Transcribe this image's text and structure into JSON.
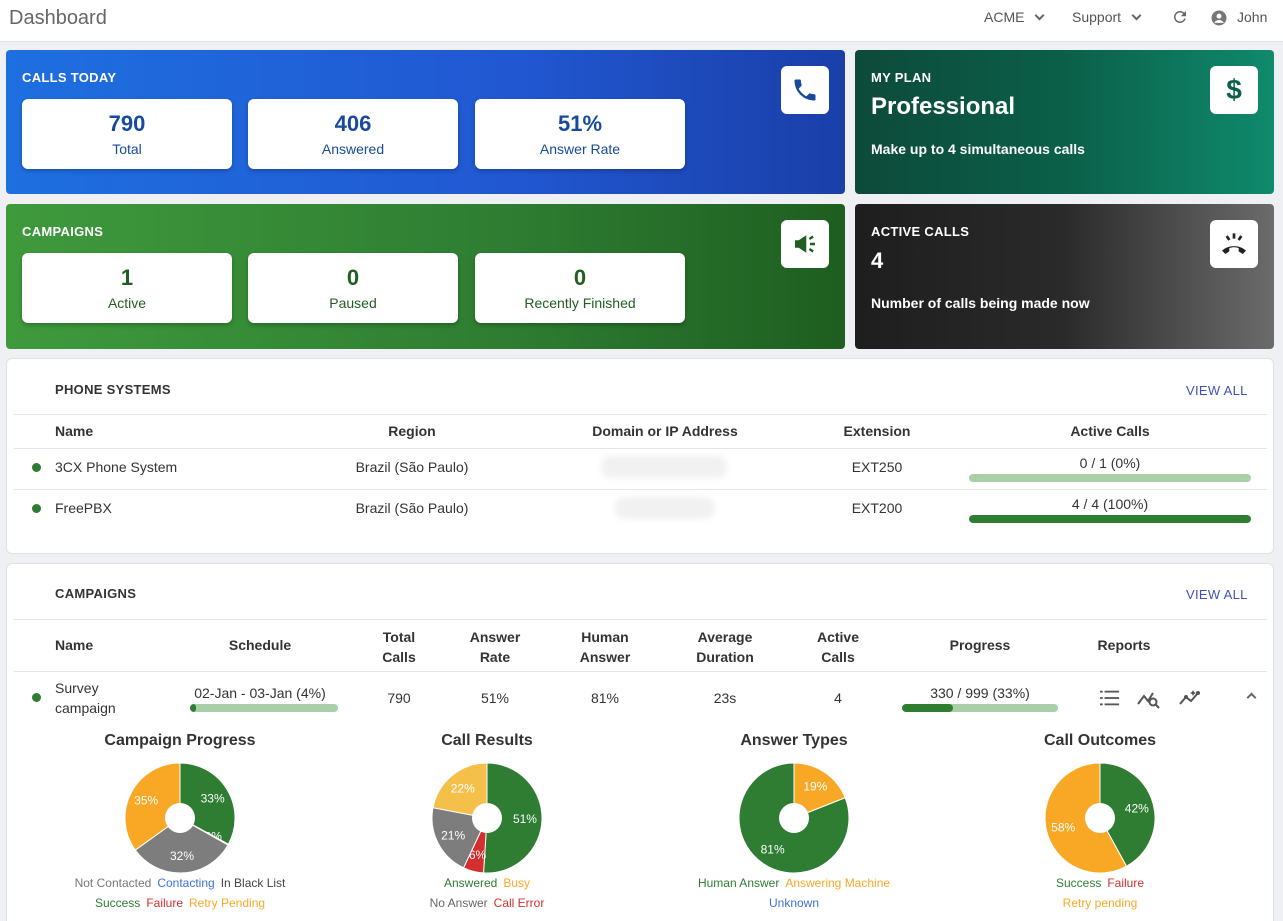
{
  "header": {
    "title": "Dashboard",
    "org": "ACME",
    "support": "Support",
    "user": "John"
  },
  "calls_today": {
    "title": "CALLS TODAY",
    "stats": [
      {
        "value": "790",
        "label": "Total"
      },
      {
        "value": "406",
        "label": "Answered"
      },
      {
        "value": "51%",
        "label": "Answer Rate"
      }
    ]
  },
  "my_plan": {
    "title": "MY PLAN",
    "plan": "Professional",
    "desc": "Make up to 4 simultaneous calls"
  },
  "campaigns_card": {
    "title": "CAMPAIGNS",
    "stats": [
      {
        "value": "1",
        "label": "Active"
      },
      {
        "value": "0",
        "label": "Paused"
      },
      {
        "value": "0",
        "label": "Recently Finished"
      }
    ]
  },
  "active_calls": {
    "title": "ACTIVE CALLS",
    "count": "4",
    "desc": "Number of calls being made now"
  },
  "phone_systems": {
    "title": "PHONE SYSTEMS",
    "view_all": "VIEW ALL",
    "columns": [
      "Name",
      "Region",
      "Domain or IP Address",
      "Extension",
      "Active Calls"
    ],
    "rows": [
      {
        "name": "3CX Phone System",
        "region": "Brazil (São Paulo)",
        "extension": "EXT250",
        "active": "0 / 1 (0%)",
        "progress": 0
      },
      {
        "name": "FreePBX",
        "region": "Brazil (São Paulo)",
        "extension": "EXT200",
        "active": "4 / 4 (100%)",
        "progress": 1
      }
    ]
  },
  "campaigns": {
    "title": "CAMPAIGNS",
    "view_all": "VIEW ALL",
    "columns": {
      "name": "Name",
      "schedule": "Schedule",
      "total1": "Total",
      "total2": "Calls",
      "rate1": "Answer",
      "rate2": "Rate",
      "human1": "Human",
      "human2": "Answer",
      "avg1": "Average",
      "avg2": "Duration",
      "active1": "Active",
      "active2": "Calls",
      "progress": "Progress",
      "reports": "Reports"
    },
    "row": {
      "name1": "Survey",
      "name2": "campaign",
      "schedule": "02-Jan - 03-Jan (4%)",
      "schedule_progress": 0.04,
      "total": "790",
      "rate": "51%",
      "human": "81%",
      "avg": "23s",
      "active": "4",
      "progress": "330 / 999 (33%)",
      "progress_value": 0.33
    }
  },
  "colors": {
    "green": "#2e7d32",
    "orange": "#f9a825",
    "red": "#d32f2f",
    "gray": "#7d7d7d",
    "blue": "#3f6fd8",
    "yellow": "#f5c04a"
  },
  "chart_data": [
    {
      "type": "pie",
      "title": "Campaign Progress",
      "slices": [
        {
          "label": "Not Contacted",
          "value": 33,
          "color": "#2e7d32",
          "text": "33%"
        },
        {
          "label": "Contacting",
          "value": 0.3,
          "color": "#3f6fd8",
          "text": "0%"
        },
        {
          "label": "In Black List",
          "value": 0,
          "color": "#444444",
          "text": ""
        },
        {
          "label": "Success",
          "value": 0,
          "color": "#2e7d32",
          "text": ""
        },
        {
          "label": "Failure",
          "value": 0,
          "color": "#d32f2f",
          "text": ""
        },
        {
          "label": "Retry Pending",
          "value": 32,
          "color": "#7d7d7d",
          "text": "32%"
        },
        {
          "label": "Retry Pending",
          "value": 35,
          "color": "#f9a825",
          "text": "35%"
        }
      ],
      "legend": [
        [
          {
            "text": "Not Contacted",
            "color": "#777777"
          },
          {
            "text": "Contacting",
            "color": "#3f6fd8"
          },
          {
            "text": "In Black List",
            "color": "#444444"
          }
        ],
        [
          {
            "text": "Success",
            "color": "#2e7d32"
          },
          {
            "text": "Failure",
            "color": "#d32f2f"
          },
          {
            "text": "Retry Pending",
            "color": "#f9a825"
          }
        ]
      ]
    },
    {
      "type": "pie",
      "title": "Call Results",
      "slices": [
        {
          "label": "Answered",
          "value": 51,
          "color": "#2e7d32",
          "text": "51%"
        },
        {
          "label": "Call Error",
          "value": 6,
          "color": "#d32f2f",
          "text": "6%"
        },
        {
          "label": "No Answer",
          "value": 21,
          "color": "#7d7d7d",
          "text": "21%"
        },
        {
          "label": "Busy",
          "value": 22,
          "color": "#f5c04a",
          "text": "22%"
        }
      ],
      "legend": [
        [
          {
            "text": "Answered",
            "color": "#2e7d32"
          },
          {
            "text": "Busy",
            "color": "#f9a825"
          }
        ],
        [
          {
            "text": "No Answer",
            "color": "#666666"
          },
          {
            "text": "Call Error",
            "color": "#d32f2f"
          }
        ]
      ]
    },
    {
      "type": "pie",
      "title": "Answer Types",
      "slices": [
        {
          "label": "Answering Machine",
          "value": 19,
          "color": "#f9a825",
          "text": "19%"
        },
        {
          "label": "Human Answer",
          "value": 81,
          "color": "#2e7d32",
          "text": "81%"
        }
      ],
      "legend": [
        [
          {
            "text": "Human Answer",
            "color": "#2e7d32"
          },
          {
            "text": "Answering Machine",
            "color": "#f9a825"
          }
        ],
        [
          {
            "text": "Unknown",
            "color": "#3f6fd8"
          }
        ]
      ]
    },
    {
      "type": "pie",
      "title": "Call Outcomes",
      "slices": [
        {
          "label": "Success",
          "value": 42,
          "color": "#2e7d32",
          "text": "42%"
        },
        {
          "label": "Retry pending",
          "value": 58,
          "color": "#f9a825",
          "text": "58%"
        }
      ],
      "legend": [
        [
          {
            "text": "Success",
            "color": "#2e7d32"
          },
          {
            "text": "Failure",
            "color": "#d32f2f"
          }
        ],
        [
          {
            "text": "Retry pending",
            "color": "#f9a825"
          }
        ]
      ]
    }
  ]
}
